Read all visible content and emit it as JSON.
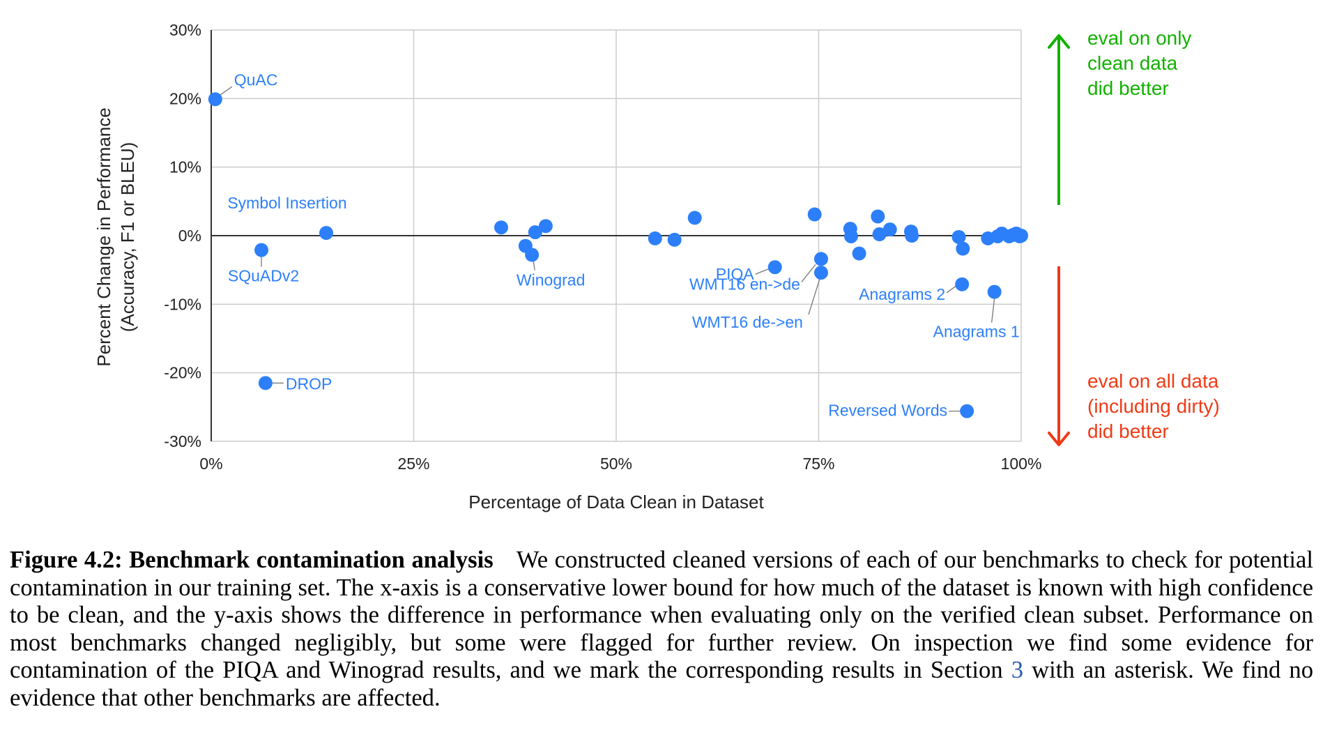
{
  "chart_data": {
    "type": "scatter",
    "xlabel": "Percentage of Data Clean in Dataset",
    "ylabel": [
      "Percent Change in Performance",
      "(Accuracy,  F1 or BLEU)"
    ],
    "xlim": [
      0,
      100
    ],
    "ylim": [
      -30,
      30
    ],
    "x_ticks": [
      {
        "value": 0,
        "label": "0%"
      },
      {
        "value": 25,
        "label": "25%"
      },
      {
        "value": 50,
        "label": "50%"
      },
      {
        "value": 75,
        "label": "75%"
      },
      {
        "value": 100,
        "label": "100%"
      }
    ],
    "y_ticks": [
      {
        "value": 30,
        "label": "30%"
      },
      {
        "value": 20,
        "label": "20%"
      },
      {
        "value": 10,
        "label": "10%"
      },
      {
        "value": 0,
        "label": "0%"
      },
      {
        "value": -10,
        "label": "-10%"
      },
      {
        "value": -20,
        "label": "-20%"
      },
      {
        "value": -30,
        "label": "-30%"
      }
    ],
    "grid": true,
    "point_color": "#2d7ff9",
    "points": [
      {
        "x": 0.5,
        "y": 19.9,
        "label": "QuAC"
      },
      {
        "x": 14.2,
        "y": 0.4,
        "label": "Symbol Insertion"
      },
      {
        "x": 6.2,
        "y": -2.1,
        "label": "SQuADv2"
      },
      {
        "x": 6.7,
        "y": -21.5,
        "label": "DROP"
      },
      {
        "x": 35.8,
        "y": 1.2
      },
      {
        "x": 38.8,
        "y": -1.5
      },
      {
        "x": 39.6,
        "y": -2.8,
        "label": "Winograd"
      },
      {
        "x": 40.0,
        "y": 0.5
      },
      {
        "x": 41.3,
        "y": 1.4
      },
      {
        "x": 54.8,
        "y": -0.4
      },
      {
        "x": 57.2,
        "y": -0.6
      },
      {
        "x": 59.7,
        "y": 2.6
      },
      {
        "x": 69.6,
        "y": -4.6,
        "label": "PIQA"
      },
      {
        "x": 74.5,
        "y": 3.1
      },
      {
        "x": 75.3,
        "y": -3.4,
        "label": "WMT16 en->de"
      },
      {
        "x": 75.3,
        "y": -5.4,
        "label": "WMT16 de->en"
      },
      {
        "x": 78.9,
        "y": 1.0
      },
      {
        "x": 79.0,
        "y": -0.1
      },
      {
        "x": 80.0,
        "y": -2.6
      },
      {
        "x": 82.3,
        "y": 2.8
      },
      {
        "x": 82.5,
        "y": 0.2
      },
      {
        "x": 83.8,
        "y": 0.9
      },
      {
        "x": 86.4,
        "y": 0.6
      },
      {
        "x": 86.5,
        "y": 0.0
      },
      {
        "x": 92.3,
        "y": -0.2
      },
      {
        "x": 92.7,
        "y": -7.1,
        "label": "Anagrams 2"
      },
      {
        "x": 92.8,
        "y": -1.9
      },
      {
        "x": 93.3,
        "y": -25.6,
        "label": "Reversed Words"
      },
      {
        "x": 95.9,
        "y": -0.4
      },
      {
        "x": 96.7,
        "y": -8.2,
        "label": "Anagrams 1"
      },
      {
        "x": 97.1,
        "y": -0.1
      },
      {
        "x": 97.6,
        "y": 0.3
      },
      {
        "x": 98.5,
        "y": -0.1
      },
      {
        "x": 99.0,
        "y": 0.1
      },
      {
        "x": 99.4,
        "y": 0.3
      },
      {
        "x": 99.8,
        "y": -0.1
      },
      {
        "x": 100.0,
        "y": 0.0
      }
    ],
    "annotations": [
      {
        "text": [
          "eval on only",
          "clean data",
          "did better"
        ],
        "color": "#12b100",
        "direction": "up"
      },
      {
        "text": [
          "eval on all data",
          "(including dirty)",
          "did better"
        ],
        "color": "#f03a17",
        "direction": "down"
      }
    ]
  },
  "caption": {
    "title": "Figure 4.2: Benchmark contamination analysis",
    "text_before_ref": "We constructed cleaned versions of each of our benchmarks to check for potential contamination in our training set. The x-axis is a conservative lower bound for how much of the dataset is known with high confidence to be clean, and the y-axis shows the difference in performance when evaluating only on the verified clean subset. Performance on most benchmarks changed negligibly, but some were flagged for further review. On inspection we find some evidence for contamination of the PIQA and Winograd results, and we mark the corresponding results in Section",
    "ref": "3",
    "text_after_ref": "with an asterisk. We find no evidence that other benchmarks are affected."
  }
}
